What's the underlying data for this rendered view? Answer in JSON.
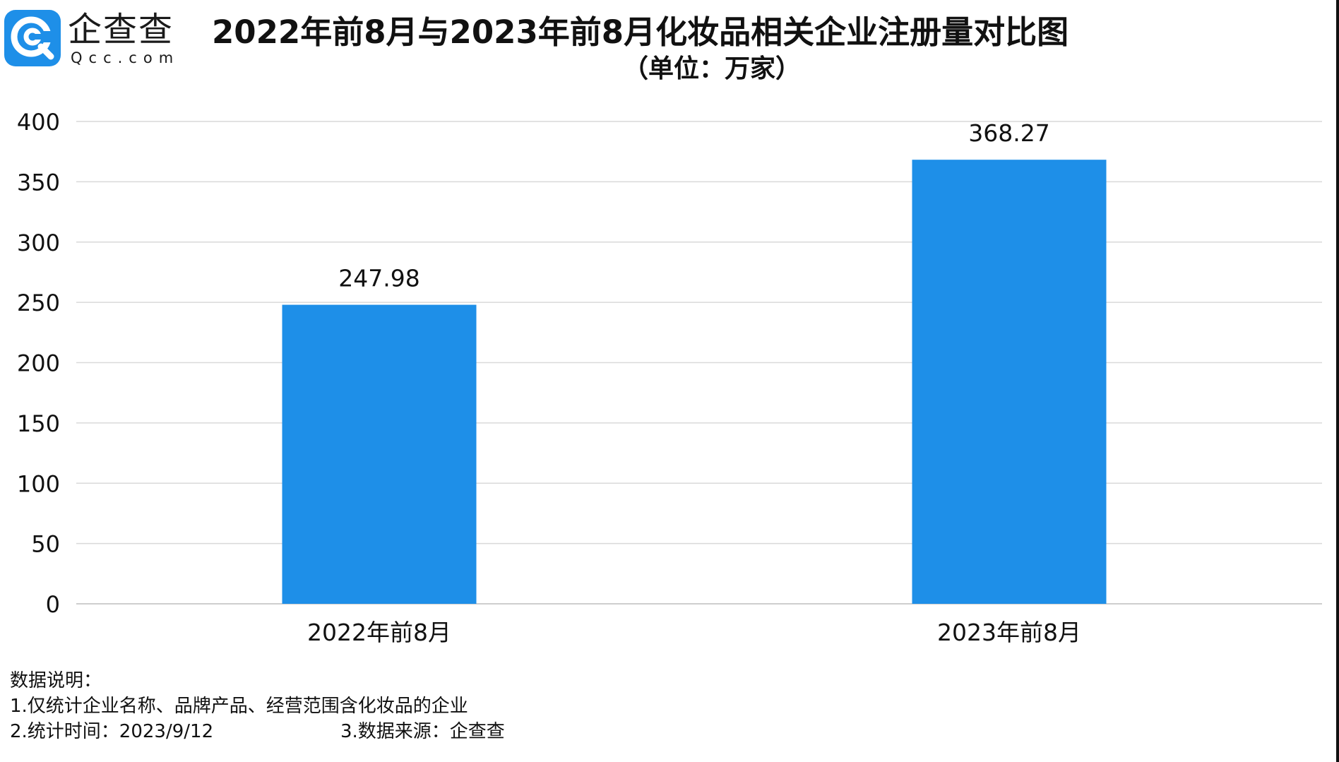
{
  "brand": {
    "name_cn": "企查查",
    "name_en": "Qcc.com",
    "logo_color": "#1e8fe8"
  },
  "chart_data": {
    "type": "bar",
    "title": "2022年前8月与2023年前8月化妆品相关企业注册量对比图",
    "subtitle": "（单位：万家）",
    "categories": [
      "2022年前8月",
      "2023年前8月"
    ],
    "values": [
      247.98,
      368.27
    ],
    "value_labels": [
      "247.98",
      "368.27"
    ],
    "ylim": [
      0,
      400
    ],
    "yticks": [
      0,
      50,
      100,
      150,
      200,
      250,
      300,
      350,
      400
    ],
    "grid": true,
    "bar_color": "#1e8fe8",
    "grid_color": "#d9d9d9"
  },
  "notes": {
    "heading": "数据说明：",
    "line1": "1.仅统计企业名称、品牌产品、经营范围含化妆品的企业",
    "line2": "2.统计时间：2023/9/12",
    "line3": "3.数据来源：企查查"
  }
}
